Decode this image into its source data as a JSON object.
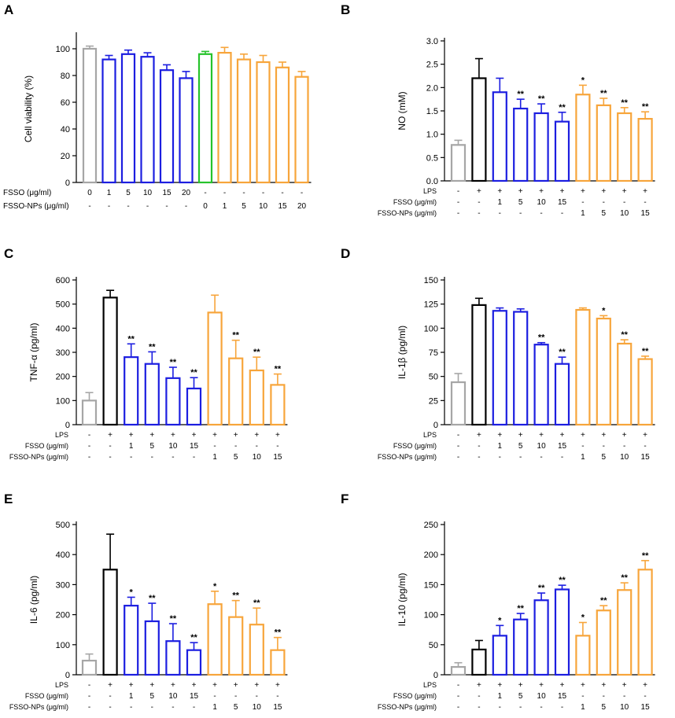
{
  "colors": {
    "control": "#a6a6a6",
    "lps": "#000000",
    "fsso": "#1c1ee0",
    "fsso_nps": "#f7a53b",
    "zero_nps": "#27c32c"
  },
  "chart_data": [
    {
      "type": "bar",
      "panel": "A",
      "ylabel": "Cell viability (%)",
      "ylim": [
        0,
        110
      ],
      "yticks": [
        0,
        20,
        40,
        60,
        80,
        100
      ],
      "values": [
        100,
        92,
        96,
        94,
        84,
        78,
        96,
        97,
        92,
        90,
        86,
        79
      ],
      "errors": [
        2,
        3,
        3,
        3,
        4,
        5,
        2,
        4,
        4,
        5,
        4,
        4
      ],
      "groups": [
        "control",
        "fsso",
        "fsso",
        "fsso",
        "fsso",
        "fsso",
        "zero_nps",
        "fsso_nps",
        "fsso_nps",
        "fsso_nps",
        "fsso_nps",
        "fsso_nps"
      ],
      "stars": [
        "",
        "",
        "",
        "",
        "",
        "",
        "",
        "",
        "",
        "",
        "",
        ""
      ],
      "condition_rows": [
        {
          "label": "FSSO (μg/ml)",
          "values": [
            "0",
            "1",
            "5",
            "10",
            "15",
            "20",
            "-",
            "-",
            "-",
            "-",
            "-",
            "-"
          ]
        },
        {
          "label": "FSSO-NPs (μg/ml)",
          "values": [
            "-",
            "-",
            "-",
            "-",
            "-",
            "-",
            "0",
            "1",
            "5",
            "10",
            "15",
            "20"
          ]
        }
      ]
    },
    {
      "type": "bar",
      "panel": "B",
      "ylabel": "NO (mM)",
      "ylim": [
        0,
        3.0
      ],
      "yticks": [
        "0.0",
        "0.5",
        "1.0",
        "1.5",
        "2.0",
        "2.5",
        "3.0"
      ],
      "values": [
        0.77,
        2.2,
        1.9,
        1.55,
        1.45,
        1.27,
        1.85,
        1.62,
        1.45,
        1.33
      ],
      "errors": [
        0.1,
        0.42,
        0.3,
        0.2,
        0.2,
        0.2,
        0.2,
        0.15,
        0.12,
        0.15
      ],
      "groups": [
        "control",
        "lps",
        "fsso",
        "fsso",
        "fsso",
        "fsso",
        "fsso_nps",
        "fsso_nps",
        "fsso_nps",
        "fsso_nps"
      ],
      "stars": [
        "",
        "",
        "",
        "**",
        "**",
        "**",
        "*",
        "**",
        "**",
        "**"
      ],
      "condition_rows": [
        {
          "label": "LPS",
          "values": [
            "-",
            "+",
            "+",
            "+",
            "+",
            "+",
            "+",
            "+",
            "+",
            "+"
          ]
        },
        {
          "label": "FSSO (μg/ml)",
          "values": [
            "-",
            "-",
            "1",
            "5",
            "10",
            "15",
            "-",
            "-",
            "-",
            "-"
          ]
        },
        {
          "label": "FSSO-NPs (μg/ml)",
          "values": [
            "-",
            "-",
            "-",
            "-",
            "-",
            "-",
            "1",
            "5",
            "10",
            "15"
          ]
        }
      ]
    },
    {
      "type": "bar",
      "panel": "C",
      "ylabel": "TNF-α (pg/ml)",
      "ylim": [
        0,
        600
      ],
      "yticks": [
        0,
        100,
        200,
        300,
        400,
        500,
        600
      ],
      "values": [
        100,
        527,
        280,
        252,
        193,
        150,
        465,
        275,
        225,
        165
      ],
      "errors": [
        33,
        30,
        55,
        50,
        45,
        45,
        72,
        75,
        55,
        45
      ],
      "groups": [
        "control",
        "lps",
        "fsso",
        "fsso",
        "fsso",
        "fsso",
        "fsso_nps",
        "fsso_nps",
        "fsso_nps",
        "fsso_nps"
      ],
      "stars": [
        "",
        "",
        "**",
        "**",
        "**",
        "**",
        "",
        "**",
        "**",
        "**"
      ],
      "condition_rows": [
        {
          "label": "LPS",
          "values": [
            "-",
            "+",
            "+",
            "+",
            "+",
            "+",
            "+",
            "+",
            "+",
            "+"
          ]
        },
        {
          "label": "FSSO (μg/ml)",
          "values": [
            "-",
            "-",
            "1",
            "5",
            "10",
            "15",
            "-",
            "-",
            "-",
            "-"
          ]
        },
        {
          "label": "FSSO-NPs (μg/ml)",
          "values": [
            "-",
            "-",
            "-",
            "-",
            "-",
            "-",
            "1",
            "5",
            "10",
            "15"
          ]
        }
      ]
    },
    {
      "type": "bar",
      "panel": "D",
      "ylabel": "IL-1β (pg/ml)",
      "ylim": [
        0,
        150
      ],
      "yticks": [
        0,
        25,
        50,
        75,
        100,
        125,
        150
      ],
      "values": [
        44,
        124,
        118,
        117,
        83,
        63,
        119,
        110,
        84,
        68
      ],
      "errors": [
        9,
        7,
        3,
        3,
        2,
        7,
        2,
        3,
        4,
        3
      ],
      "groups": [
        "control",
        "lps",
        "fsso",
        "fsso",
        "fsso",
        "fsso",
        "fsso_nps",
        "fsso_nps",
        "fsso_nps",
        "fsso_nps"
      ],
      "stars": [
        "",
        "",
        "",
        "",
        "**",
        "**",
        "",
        "*",
        "**",
        "**"
      ],
      "condition_rows": [
        {
          "label": "LPS",
          "values": [
            "-",
            "+",
            "+",
            "+",
            "+",
            "+",
            "+",
            "+",
            "+",
            "+"
          ]
        },
        {
          "label": "FSSO (μg/ml)",
          "values": [
            "-",
            "-",
            "1",
            "5",
            "10",
            "15",
            "-",
            "-",
            "-",
            "-"
          ]
        },
        {
          "label": "FSSO-NPs (μg/ml)",
          "values": [
            "-",
            "-",
            "-",
            "-",
            "-",
            "-",
            "1",
            "5",
            "10",
            "15"
          ]
        }
      ]
    },
    {
      "type": "bar",
      "panel": "E",
      "ylabel": "IL-6 (pg/ml)",
      "ylim": [
        0,
        500
      ],
      "yticks": [
        0,
        100,
        200,
        300,
        400,
        500
      ],
      "values": [
        47,
        350,
        230,
        178,
        112,
        82,
        235,
        192,
        167,
        82
      ],
      "errors": [
        22,
        118,
        28,
        60,
        58,
        25,
        43,
        55,
        55,
        42
      ],
      "groups": [
        "control",
        "lps",
        "fsso",
        "fsso",
        "fsso",
        "fsso",
        "fsso_nps",
        "fsso_nps",
        "fsso_nps",
        "fsso_nps"
      ],
      "stars": [
        "",
        "",
        "*",
        "**",
        "**",
        "**",
        "*",
        "**",
        "**",
        "**"
      ],
      "condition_rows": [
        {
          "label": "LPS",
          "values": [
            "-",
            "+",
            "+",
            "+",
            "+",
            "+",
            "+",
            "+",
            "+",
            "+"
          ]
        },
        {
          "label": "FSSO (μg/ml)",
          "values": [
            "-",
            "-",
            "1",
            "5",
            "10",
            "15",
            "-",
            "-",
            "-",
            "-"
          ]
        },
        {
          "label": "FSSO-NPs (μg/ml)",
          "values": [
            "-",
            "-",
            "-",
            "-",
            "-",
            "-",
            "1",
            "5",
            "10",
            "15"
          ]
        }
      ]
    },
    {
      "type": "bar",
      "panel": "F",
      "ylabel": "IL-10 (pg/ml)",
      "ylim": [
        0,
        250
      ],
      "yticks": [
        0,
        50,
        100,
        150,
        200,
        250
      ],
      "values": [
        13,
        42,
        65,
        92,
        124,
        142,
        65,
        107,
        141,
        175
      ],
      "errors": [
        7,
        15,
        17,
        10,
        12,
        7,
        22,
        8,
        12,
        15
      ],
      "groups": [
        "control",
        "lps",
        "fsso",
        "fsso",
        "fsso",
        "fsso",
        "fsso_nps",
        "fsso_nps",
        "fsso_nps",
        "fsso_nps"
      ],
      "stars": [
        "",
        "",
        "*",
        "**",
        "**",
        "**",
        "*",
        "**",
        "**",
        "**"
      ],
      "condition_rows": [
        {
          "label": "LPS",
          "values": [
            "-",
            "+",
            "+",
            "+",
            "+",
            "+",
            "+",
            "+",
            "+",
            "+"
          ]
        },
        {
          "label": "FSSO (μg/ml)",
          "values": [
            "-",
            "-",
            "1",
            "5",
            "10",
            "15",
            "-",
            "-",
            "-",
            "-"
          ]
        },
        {
          "label": "FSSO-NPs (μg/ml)",
          "values": [
            "-",
            "-",
            "-",
            "-",
            "-",
            "-",
            "1",
            "5",
            "10",
            "15"
          ]
        }
      ]
    }
  ]
}
